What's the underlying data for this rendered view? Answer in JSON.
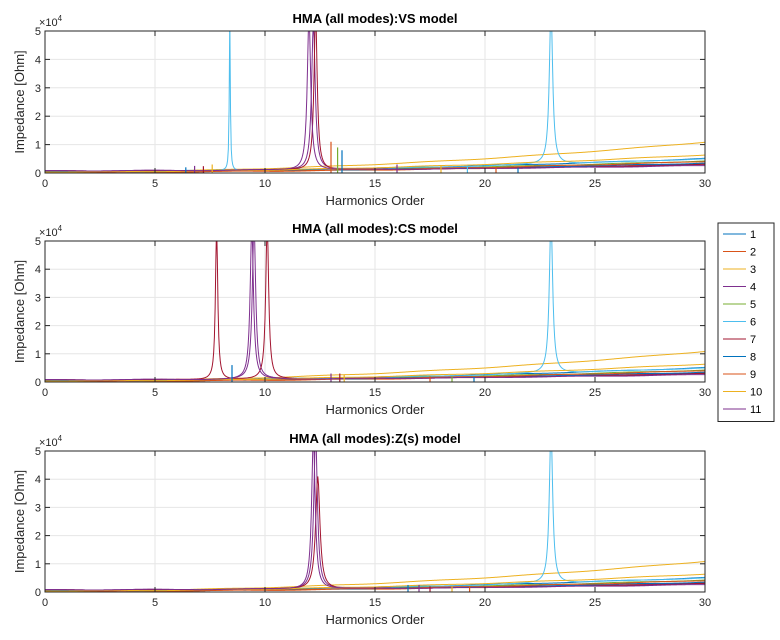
{
  "chart_data": [
    {
      "type": "line",
      "title": "HMA (all modes):VS model",
      "xlabel": "Harmonics Order",
      "ylabel": "Impedance [Ohm]",
      "xlim": [
        0,
        30
      ],
      "ylim": [
        0,
        50000
      ],
      "y_exponent_label": "×10^4",
      "xticks": [
        "0",
        "5",
        "10",
        "15",
        "20",
        "25",
        "30"
      ],
      "yticks": [
        "0",
        "1",
        "2",
        "3",
        "4",
        "5"
      ],
      "grid": true,
      "series": [
        {
          "name": "1",
          "peaks": [],
          "base": 600,
          "slope": 30
        },
        {
          "name": "2",
          "peaks": [],
          "base": 300,
          "slope": 20
        },
        {
          "name": "3",
          "peaks": [],
          "base": 400,
          "slope": 70
        },
        {
          "name": "4",
          "peaks": [
            {
              "x": 12.2,
              "h": 52000,
              "w": 0.05
            }
          ],
          "base": 800,
          "slope": 15
        },
        {
          "name": "5",
          "peaks": [],
          "base": 500,
          "slope": 25
        },
        {
          "name": "6",
          "peaks": [
            {
              "x": 8.4,
              "h": 55000,
              "w": 0.02
            },
            {
              "x": 23.0,
              "h": 55000,
              "w": 0.025
            }
          ],
          "base": 500,
          "slope": 30
        },
        {
          "name": "7",
          "peaks": [
            {
              "x": 12.3,
              "h": 55000,
              "w": 0.045
            }
          ],
          "base": 700,
          "slope": 15
        },
        {
          "name": "8",
          "peaks": [],
          "base": 500,
          "slope": 20
        },
        {
          "name": "9",
          "peaks": [],
          "base": 300,
          "slope": 25
        },
        {
          "name": "10",
          "peaks": [],
          "base": 400,
          "slope": 40
        },
        {
          "name": "11",
          "peaks": [
            {
              "x": 12.0,
              "h": 54000,
              "w": 0.05
            }
          ],
          "base": 800,
          "slope": 12
        }
      ],
      "spikes": [
        {
          "x": 6.4,
          "h": 2000
        },
        {
          "x": 6.8,
          "h": 2500
        },
        {
          "x": 7.2,
          "h": 2400
        },
        {
          "x": 7.6,
          "h": 3000
        },
        {
          "x": 13.0,
          "h": 11000
        },
        {
          "x": 13.3,
          "h": 9000
        },
        {
          "x": 13.5,
          "h": 8000
        },
        {
          "x": 16.0,
          "h": 3000
        },
        {
          "x": 18.0,
          "h": 2500
        },
        {
          "x": 19.2,
          "h": 2500
        },
        {
          "x": 20.5,
          "h": 1800
        },
        {
          "x": 21.5,
          "h": 1800
        }
      ]
    },
    {
      "type": "line",
      "title": "HMA (all modes):CS model",
      "xlabel": "Harmonics Order",
      "ylabel": "Impedance [Ohm]",
      "xlim": [
        0,
        30
      ],
      "ylim": [
        0,
        50000
      ],
      "y_exponent_label": "×10^4",
      "xticks": [
        "0",
        "5",
        "10",
        "15",
        "20",
        "25",
        "30"
      ],
      "yticks": [
        "0",
        "1",
        "2",
        "3",
        "4",
        "5"
      ],
      "grid": true,
      "series": [
        {
          "name": "1",
          "peaks": [],
          "base": 600,
          "slope": 30
        },
        {
          "name": "2",
          "peaks": [],
          "base": 300,
          "slope": 20
        },
        {
          "name": "3",
          "peaks": [],
          "base": 400,
          "slope": 70
        },
        {
          "name": "4",
          "peaks": [
            {
              "x": 9.5,
              "h": 55000,
              "w": 0.06
            }
          ],
          "base": 800,
          "slope": 15
        },
        {
          "name": "5",
          "peaks": [],
          "base": 500,
          "slope": 25
        },
        {
          "name": "6",
          "peaks": [
            {
              "x": 23.0,
              "h": 55000,
              "w": 0.025
            }
          ],
          "base": 500,
          "slope": 30
        },
        {
          "name": "7",
          "peaks": [
            {
              "x": 7.8,
              "h": 55000,
              "w": 0.05
            },
            {
              "x": 10.1,
              "h": 55000,
              "w": 0.05
            }
          ],
          "base": 700,
          "slope": 15
        },
        {
          "name": "8",
          "peaks": [],
          "base": 500,
          "slope": 20
        },
        {
          "name": "9",
          "peaks": [],
          "base": 300,
          "slope": 25
        },
        {
          "name": "10",
          "peaks": [],
          "base": 400,
          "slope": 40
        },
        {
          "name": "11",
          "peaks": [
            {
              "x": 9.4,
              "h": 54000,
              "w": 0.06
            }
          ],
          "base": 800,
          "slope": 12
        }
      ],
      "spikes": [
        {
          "x": 8.5,
          "h": 6000
        },
        {
          "x": 13.0,
          "h": 3000
        },
        {
          "x": 13.4,
          "h": 3000
        },
        {
          "x": 13.6,
          "h": 2500
        },
        {
          "x": 17.5,
          "h": 2000
        },
        {
          "x": 18.5,
          "h": 2000
        },
        {
          "x": 19.5,
          "h": 1800
        }
      ]
    },
    {
      "type": "line",
      "title": "HMA (all modes):Z(s) model",
      "xlabel": "Harmonics Order",
      "ylabel": "Impedance [Ohm]",
      "xlim": [
        0,
        30
      ],
      "ylim": [
        0,
        50000
      ],
      "y_exponent_label": "×10^4",
      "xticks": [
        "0",
        "5",
        "10",
        "15",
        "20",
        "25",
        "30"
      ],
      "yticks": [
        "0",
        "1",
        "2",
        "3",
        "4",
        "5"
      ],
      "grid": true,
      "series": [
        {
          "name": "1",
          "peaks": [],
          "base": 600,
          "slope": 30
        },
        {
          "name": "2",
          "peaks": [],
          "base": 300,
          "slope": 20
        },
        {
          "name": "3",
          "peaks": [],
          "base": 400,
          "slope": 70
        },
        {
          "name": "4",
          "peaks": [
            {
              "x": 12.3,
              "h": 55000,
              "w": 0.05
            }
          ],
          "base": 800,
          "slope": 15
        },
        {
          "name": "5",
          "peaks": [],
          "base": 500,
          "slope": 25
        },
        {
          "name": "6",
          "peaks": [
            {
              "x": 23.0,
              "h": 55000,
              "w": 0.025
            }
          ],
          "base": 500,
          "slope": 30
        },
        {
          "name": "7",
          "peaks": [
            {
              "x": 12.4,
              "h": 40000,
              "w": 0.06
            }
          ],
          "base": 700,
          "slope": 15
        },
        {
          "name": "8",
          "peaks": [],
          "base": 500,
          "slope": 20
        },
        {
          "name": "9",
          "peaks": [],
          "base": 300,
          "slope": 25
        },
        {
          "name": "10",
          "peaks": [],
          "base": 400,
          "slope": 40
        },
        {
          "name": "11",
          "peaks": [
            {
              "x": 12.2,
              "h": 54000,
              "w": 0.05
            }
          ],
          "base": 800,
          "slope": 12
        }
      ],
      "spikes": [
        {
          "x": 16.5,
          "h": 2500
        },
        {
          "x": 17.0,
          "h": 2500
        },
        {
          "x": 17.5,
          "h": 2000
        },
        {
          "x": 18.5,
          "h": 2000
        },
        {
          "x": 19.3,
          "h": 2000
        }
      ]
    }
  ],
  "legend": {
    "placement": "right",
    "entries": [
      "1",
      "2",
      "3",
      "4",
      "5",
      "6",
      "7",
      "8",
      "9",
      "10",
      "11"
    ]
  },
  "colors": [
    "#0072BD",
    "#D95319",
    "#EDB120",
    "#7E2F8E",
    "#77AC30",
    "#4DBEEE",
    "#A2142F",
    "#0072BD",
    "#D95319",
    "#EDB120",
    "#7E2F8E"
  ]
}
